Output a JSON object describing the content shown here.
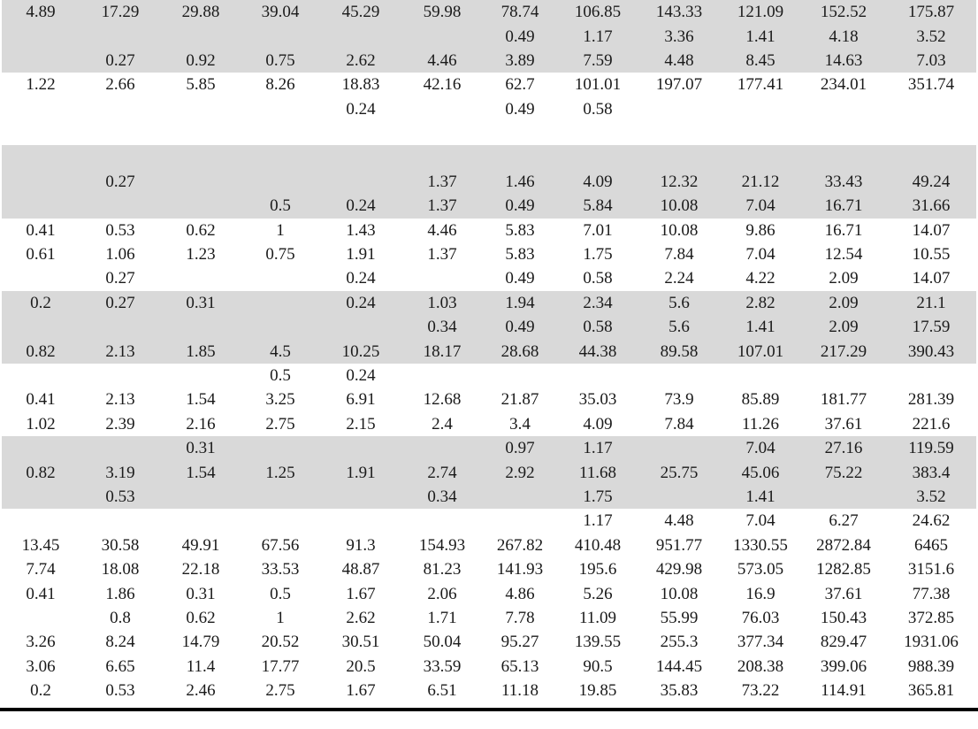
{
  "table": {
    "rows": [
      {
        "shaded": true,
        "cells": [
          "4.89",
          "17.29",
          "29.88",
          "39.04",
          "45.29",
          "59.98",
          "78.74",
          "106.85",
          "143.33",
          "121.09",
          "152.52",
          "175.87"
        ]
      },
      {
        "shaded": true,
        "cells": [
          "",
          "",
          "",
          "",
          "",
          "",
          "0.49",
          "1.17",
          "3.36",
          "1.41",
          "4.18",
          "3.52"
        ]
      },
      {
        "shaded": true,
        "cells": [
          "",
          "0.27",
          "0.92",
          "0.75",
          "2.62",
          "4.46",
          "3.89",
          "7.59",
          "4.48",
          "8.45",
          "14.63",
          "7.03"
        ]
      },
      {
        "shaded": false,
        "cells": [
          "1.22",
          "2.66",
          "5.85",
          "8.26",
          "18.83",
          "42.16",
          "62.7",
          "101.01",
          "197.07",
          "177.41",
          "234.01",
          "351.74"
        ]
      },
      {
        "shaded": false,
        "cells": [
          "",
          "",
          "",
          "",
          "0.24",
          "",
          "0.49",
          "0.58",
          "",
          "",
          "",
          ""
        ]
      },
      {
        "shaded": false,
        "cells": [
          "",
          "",
          "",
          "",
          "",
          "",
          "",
          "",
          "",
          "",
          "",
          ""
        ]
      },
      {
        "shaded": true,
        "cells": [
          "",
          "",
          "",
          "",
          "",
          "",
          "",
          "",
          "",
          "",
          "",
          ""
        ]
      },
      {
        "shaded": true,
        "cells": [
          "",
          "0.27",
          "",
          "",
          "",
          "1.37",
          "1.46",
          "4.09",
          "12.32",
          "21.12",
          "33.43",
          "49.24"
        ]
      },
      {
        "shaded": true,
        "cells": [
          "",
          "",
          "",
          "0.5",
          "0.24",
          "1.37",
          "0.49",
          "5.84",
          "10.08",
          "7.04",
          "16.71",
          "31.66"
        ]
      },
      {
        "shaded": false,
        "cells": [
          "0.41",
          "0.53",
          "0.62",
          "1",
          "1.43",
          "4.46",
          "5.83",
          "7.01",
          "10.08",
          "9.86",
          "16.71",
          "14.07"
        ]
      },
      {
        "shaded": false,
        "cells": [
          "0.61",
          "1.06",
          "1.23",
          "0.75",
          "1.91",
          "1.37",
          "5.83",
          "1.75",
          "7.84",
          "7.04",
          "12.54",
          "10.55"
        ]
      },
      {
        "shaded": false,
        "cells": [
          "",
          "0.27",
          "",
          "",
          "0.24",
          "",
          "0.49",
          "0.58",
          "2.24",
          "4.22",
          "2.09",
          "14.07"
        ]
      },
      {
        "shaded": true,
        "cells": [
          "0.2",
          "0.27",
          "0.31",
          "",
          "0.24",
          "1.03",
          "1.94",
          "2.34",
          "5.6",
          "2.82",
          "2.09",
          "21.1"
        ]
      },
      {
        "shaded": true,
        "cells": [
          "",
          "",
          "",
          "",
          "",
          "0.34",
          "0.49",
          "0.58",
          "5.6",
          "1.41",
          "2.09",
          "17.59"
        ]
      },
      {
        "shaded": true,
        "cells": [
          "0.82",
          "2.13",
          "1.85",
          "4.5",
          "10.25",
          "18.17",
          "28.68",
          "44.38",
          "89.58",
          "107.01",
          "217.29",
          "390.43"
        ]
      },
      {
        "shaded": false,
        "cells": [
          "",
          "",
          "",
          "0.5",
          "0.24",
          "",
          "",
          "",
          "",
          "",
          "",
          ""
        ]
      },
      {
        "shaded": false,
        "cells": [
          "0.41",
          "2.13",
          "1.54",
          "3.25",
          "6.91",
          "12.68",
          "21.87",
          "35.03",
          "73.9",
          "85.89",
          "181.77",
          "281.39"
        ]
      },
      {
        "shaded": false,
        "cells": [
          "1.02",
          "2.39",
          "2.16",
          "2.75",
          "2.15",
          "2.4",
          "3.4",
          "4.09",
          "7.84",
          "11.26",
          "37.61",
          "221.6"
        ]
      },
      {
        "shaded": true,
        "cells": [
          "",
          "",
          "0.31",
          "",
          "",
          "",
          "0.97",
          "1.17",
          "",
          "7.04",
          "27.16",
          "119.59"
        ]
      },
      {
        "shaded": true,
        "cells": [
          "0.82",
          "3.19",
          "1.54",
          "1.25",
          "1.91",
          "2.74",
          "2.92",
          "11.68",
          "25.75",
          "45.06",
          "75.22",
          "383.4"
        ]
      },
      {
        "shaded": true,
        "cells": [
          "",
          "0.53",
          "",
          "",
          "",
          "0.34",
          "",
          "1.75",
          "",
          "1.41",
          "",
          "3.52"
        ]
      },
      {
        "shaded": false,
        "cells": [
          "",
          "",
          "",
          "",
          "",
          "",
          "",
          "1.17",
          "4.48",
          "7.04",
          "6.27",
          "24.62"
        ]
      },
      {
        "shaded": false,
        "cells": [
          "13.45",
          "30.58",
          "49.91",
          "67.56",
          "91.3",
          "154.93",
          "267.82",
          "410.48",
          "951.77",
          "1330.55",
          "2872.84",
          "6465"
        ]
      },
      {
        "shaded": false,
        "cells": [
          "7.74",
          "18.08",
          "22.18",
          "33.53",
          "48.87",
          "81.23",
          "141.93",
          "195.6",
          "429.98",
          "573.05",
          "1282.85",
          "3151.6"
        ]
      },
      {
        "shaded": false,
        "cells": [
          "0.41",
          "1.86",
          "0.31",
          "0.5",
          "1.67",
          "2.06",
          "4.86",
          "5.26",
          "10.08",
          "16.9",
          "37.61",
          "77.38"
        ]
      },
      {
        "shaded": false,
        "cells": [
          "",
          "0.8",
          "0.62",
          "1",
          "2.62",
          "1.71",
          "7.78",
          "11.09",
          "55.99",
          "76.03",
          "150.43",
          "372.85"
        ]
      },
      {
        "shaded": false,
        "cells": [
          "3.26",
          "8.24",
          "14.79",
          "20.52",
          "30.51",
          "50.04",
          "95.27",
          "139.55",
          "255.3",
          "377.34",
          "829.47",
          "1931.06"
        ]
      },
      {
        "shaded": false,
        "cells": [
          "3.06",
          "6.65",
          "11.4",
          "17.77",
          "20.5",
          "33.59",
          "65.13",
          "90.5",
          "144.45",
          "208.38",
          "399.06",
          "988.39"
        ]
      },
      {
        "shaded": false,
        "cells": [
          "0.2",
          "0.53",
          "2.46",
          "2.75",
          "1.67",
          "6.51",
          "11.18",
          "19.85",
          "35.83",
          "73.22",
          "114.91",
          "365.81"
        ]
      }
    ]
  },
  "colors": {
    "shade": "#d9d9d9",
    "text": "#1a1a1a",
    "rule": "#000000"
  }
}
